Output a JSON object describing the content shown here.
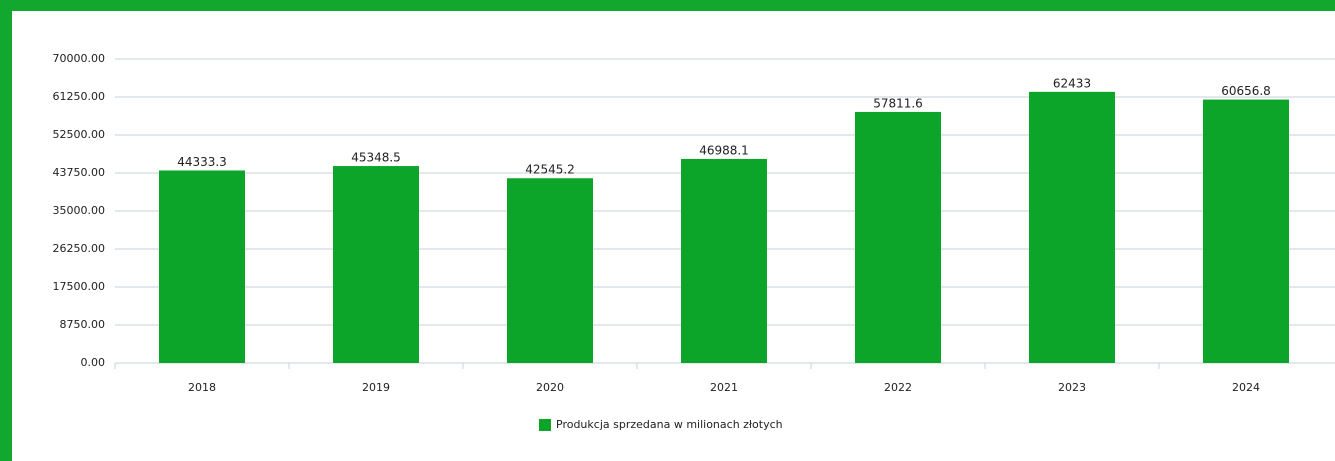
{
  "chart_data": {
    "type": "bar",
    "categories": [
      "2018",
      "2019",
      "2020",
      "2021",
      "2022",
      "2023",
      "2024"
    ],
    "series": [
      {
        "name": "Produkcja sprzedana w milionach złotych",
        "color": "#0ca52a",
        "values": [
          44333.3,
          45348.5,
          42545.2,
          46988.1,
          57811.6,
          62433,
          60656.8
        ]
      }
    ],
    "ylim": [
      0,
      70000
    ],
    "yticks": [
      {
        "value": 0,
        "label": "0.00"
      },
      {
        "value": 8750,
        "label": "8750.00"
      },
      {
        "value": 17500,
        "label": "17500.00"
      },
      {
        "value": 26250,
        "label": "26250.00"
      },
      {
        "value": 35000,
        "label": "35000.00"
      },
      {
        "value": 43750,
        "label": "43750.00"
      },
      {
        "value": 52500,
        "label": "52500.00"
      },
      {
        "value": 61250,
        "label": "61250.00"
      },
      {
        "value": 70000,
        "label": "70000.00"
      }
    ],
    "grid": true,
    "legend": "bottom"
  }
}
